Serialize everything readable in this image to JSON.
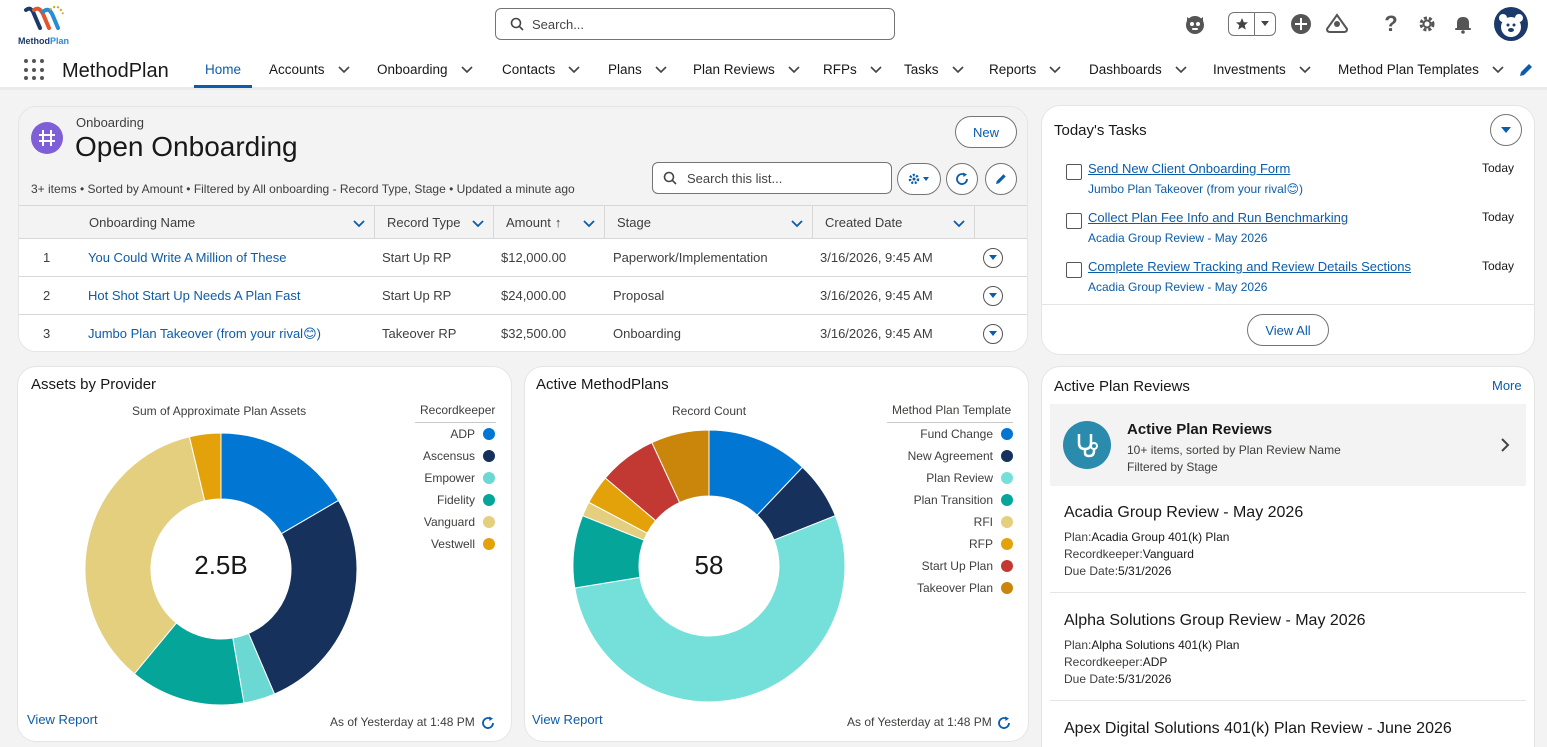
{
  "header": {
    "logo_name": "Method Plan",
    "logo_word1": "Method",
    "logo_word2": "Plan",
    "search_placeholder": "Search..."
  },
  "nav": {
    "app_name": "MethodPlan",
    "items": [
      "Home",
      "Accounts",
      "Onboarding",
      "Contacts",
      "Plans",
      "Plan Reviews",
      "RFPs",
      "Tasks",
      "Reports",
      "Dashboards",
      "Investments",
      "Method Plan Templates"
    ],
    "active": "Home"
  },
  "onboarding": {
    "object_label": "Onboarding",
    "title": "Open Onboarding",
    "meta": "3+ items • Sorted by Amount • Filtered by All onboarding - Record Type, Stage • Updated a minute ago",
    "new_button": "New",
    "search_placeholder": "Search this list...",
    "columns": [
      "Onboarding Name",
      "Record Type",
      "Amount",
      "Stage",
      "Created Date"
    ],
    "rows": [
      {
        "num": "1",
        "name": "You Could Write A Million of These",
        "record_type": "Start Up RP",
        "amount": "$12,000.00",
        "stage": "Paperwork/Implementation",
        "created": "3/16/2026, 9:45 AM"
      },
      {
        "num": "2",
        "name": "Hot Shot Start Up Needs A Plan Fast",
        "record_type": "Start Up RP",
        "amount": "$24,000.00",
        "stage": "Proposal",
        "created": "3/16/2026, 9:45 AM"
      },
      {
        "num": "3",
        "name": "Jumbo Plan Takeover (from your rival😊)",
        "record_type": "Takeover RP",
        "amount": "$32,500.00",
        "stage": "Onboarding",
        "created": "3/16/2026, 9:45 AM"
      }
    ]
  },
  "tasks": {
    "title": "Today's Tasks",
    "items": [
      {
        "name": "Send New Client Onboarding Form",
        "related": "Jumbo Plan Takeover (from your rival😊)",
        "due": "Today"
      },
      {
        "name": "Collect Plan Fee Info and Run Benchmarking",
        "related": "Acadia Group Review - May 2026",
        "due": "Today"
      },
      {
        "name": "Complete Review Tracking and Review Details Sections",
        "related": "Acadia Group Review - May 2026",
        "due": "Today"
      }
    ],
    "view_all": "View All"
  },
  "assets_chart": {
    "title": "Assets by Provider",
    "subtitle": "Sum of Approximate Plan Assets",
    "legend_title": "Recordkeeper",
    "center_value": "2.5B",
    "view_report": "View Report",
    "as_of": "As of Yesterday at 1:48 PM"
  },
  "plans_chart": {
    "title": "Active MethodPlans",
    "subtitle": "Record Count",
    "legend_title": "Method Plan Template",
    "center_value": "58",
    "view_report": "View Report",
    "as_of": "As of Yesterday at 1:48 PM"
  },
  "chart_data": [
    {
      "type": "pie",
      "title": "Assets by Provider",
      "subtitle": "Sum of Approximate Plan Assets",
      "legend_title": "Recordkeeper",
      "legend_position": "right",
      "total_label": "2.5B",
      "categories": [
        "ADP",
        "Ascensus",
        "Empower",
        "Fidelity",
        "Vanguard",
        "Vestwell"
      ],
      "values": [
        0.4,
        0.65,
        0.09,
        0.33,
        0.85,
        0.09
      ],
      "colors": [
        "#0176d3",
        "#16325c",
        "#6bd8d3",
        "#06a59a",
        "#e4cf7e",
        "#e3a20a"
      ]
    },
    {
      "type": "pie",
      "title": "Active MethodPlans",
      "subtitle": "Record Count",
      "legend_title": "Method Plan Template",
      "legend_position": "right",
      "total_label": "58",
      "categories": [
        "Fund Change",
        "New Agreement",
        "Plan Review",
        "Plan Transition",
        "RFI",
        "RFP",
        "Start Up Plan",
        "Takeover Plan"
      ],
      "values": [
        7,
        4,
        31,
        5,
        1,
        2,
        4,
        4
      ],
      "colors": [
        "#0176d3",
        "#16325c",
        "#75e0da",
        "#06a59a",
        "#e4cf7e",
        "#e3a20a",
        "#c23934",
        "#c9860b"
      ]
    }
  ],
  "reviews": {
    "title": "Active Plan Reviews",
    "more": "More",
    "banner_title": "Active Plan Reviews",
    "banner_line1": "10+ items, sorted by Plan Review Name",
    "banner_line2": "Filtered by Stage",
    "plan_label": "Plan:",
    "rk_label": "Recordkeeper:",
    "due_label": "Due Date:",
    "items": [
      {
        "name": "Acadia Group Review - May 2026",
        "plan": "Acadia Group 401(k) Plan",
        "recordkeeper": "Vanguard",
        "due": "5/31/2026"
      },
      {
        "name": "Alpha Solutions Group Review - May 2026",
        "plan": "Alpha Solutions 401(k) Plan",
        "recordkeeper": "ADP",
        "due": "5/31/2026"
      },
      {
        "name": "Apex Digital Solutions 401(k) Plan Review - June 2026"
      }
    ]
  },
  "colors": {
    "brand": "#0b5cab",
    "onboarding_icon": "#7f5fd8",
    "review_icon": "#2a8bad",
    "navy": "#1b3a6b"
  },
  "icons": [
    "search-icon",
    "waffle-icon",
    "star-icon",
    "add-icon",
    "setup-assistant-icon",
    "help-icon",
    "gear-icon",
    "bell-icon",
    "avatar",
    "chevron-down-icon",
    "edit-icon",
    "refresh-icon",
    "stethoscope-icon",
    "chevron-right-icon"
  ]
}
